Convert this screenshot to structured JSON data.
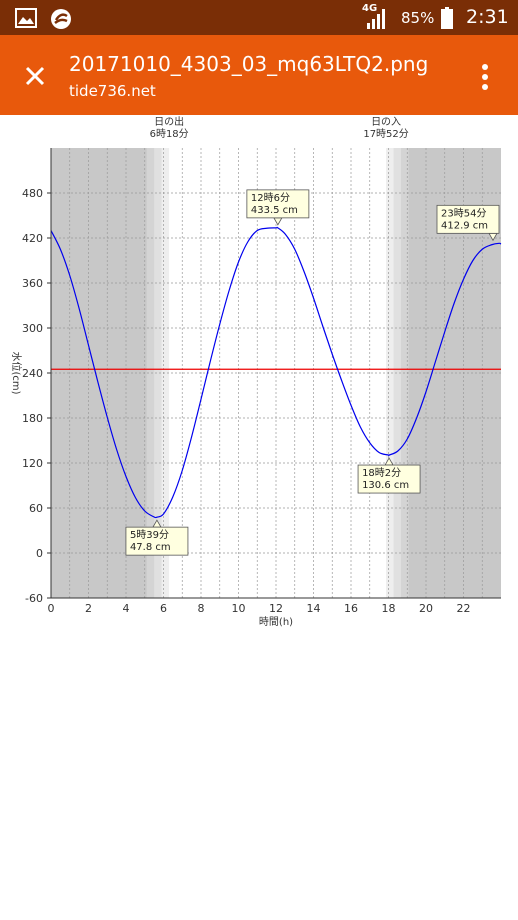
{
  "status_bar": {
    "network": "4G",
    "battery": "85%",
    "time": "2:31",
    "icons": [
      "image-icon",
      "sync-app-icon",
      "signal-icon",
      "battery-icon"
    ]
  },
  "app_bar": {
    "title": "20171010_4303_03_mq63LTQ2.png",
    "subtitle": "tide736.net",
    "close_icon": "close-icon",
    "menu_icon": "more-vert-icon"
  },
  "colors": {
    "status_bar": "#7a2e06",
    "app_bar": "#e8590c",
    "tide_line": "#0000ee",
    "mean_line": "#ee0000",
    "night": "#c8c8c8",
    "day": "#ffffff",
    "callout_bg": "#ffffe0"
  },
  "chart_data": {
    "type": "line",
    "xlabel": "時間(h)",
    "ylabel": "水位(cm)",
    "xlim": [
      0,
      24
    ],
    "ylim": [
      -60,
      540
    ],
    "x_ticks": [
      0,
      2,
      4,
      6,
      8,
      10,
      12,
      14,
      16,
      18,
      20,
      22
    ],
    "y_ticks": [
      -60,
      0,
      60,
      120,
      180,
      240,
      300,
      360,
      420,
      480
    ],
    "grid": true,
    "mean_level": 245,
    "series": [
      {
        "x": [
          0,
          0.5,
          1,
          1.5,
          2,
          2.5,
          3,
          3.5,
          4,
          4.5,
          5,
          5.5,
          5.65,
          6,
          6.5,
          7,
          7.5,
          8,
          8.5,
          9,
          9.5,
          10,
          10.5,
          11,
          11.5,
          12,
          12.1,
          12.5,
          13,
          13.5,
          14,
          14.5,
          15,
          15.5,
          16,
          16.5,
          17,
          17.5,
          18,
          18.03,
          18.5,
          19,
          19.5,
          20,
          20.5,
          21,
          21.5,
          22,
          22.5,
          23,
          23.5,
          23.9,
          24
        ],
        "y": [
          430,
          405,
          370,
          326,
          277,
          228,
          181,
          138,
          102,
          74,
          56,
          48,
          47.8,
          52,
          75,
          110,
          155,
          205,
          256,
          305,
          350,
          388,
          415,
          430,
          433,
          433.5,
          433.5,
          425,
          405,
          375,
          340,
          302,
          265,
          230,
          197,
          168,
          147,
          134,
          130.6,
          130.6,
          136,
          152,
          180,
          215,
          255,
          295,
          333,
          365,
          390,
          405,
          411,
          412.9,
          412
        ]
      }
    ],
    "sun": {
      "sunrise_label": "日の出",
      "sunrise_time": "6時18分",
      "sunrise_hour": 6.3,
      "sunset_label": "日の入",
      "sunset_time": "17時52分",
      "sunset_hour": 17.87
    },
    "annotations": [
      {
        "time": "5時39分",
        "level": "47.8 cm",
        "hour": 5.65,
        "value": 47.8,
        "side": "below"
      },
      {
        "time": "12時6分",
        "level": "433.5 cm",
        "hour": 12.1,
        "value": 433.5,
        "side": "above"
      },
      {
        "time": "18時2分",
        "level": "130.6 cm",
        "hour": 18.03,
        "value": 130.6,
        "side": "below"
      },
      {
        "time": "23時54分",
        "level": "412.9 cm",
        "hour": 23.9,
        "value": 412.9,
        "side": "above"
      }
    ]
  }
}
